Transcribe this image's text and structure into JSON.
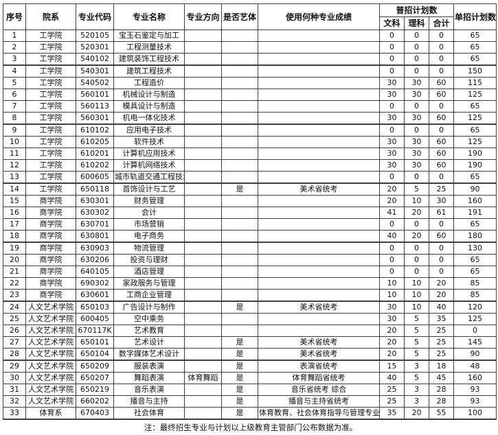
{
  "table": {
    "headers": {
      "no": "序号",
      "dept": "院系",
      "code": "专业代码",
      "name": "专业名称",
      "direction": "专业方向",
      "art": "是否艺体",
      "score": "使用何种专业成绩",
      "regular_group": "普招计划数",
      "wen": "文科",
      "li": "理科",
      "total": "合计",
      "single": "单招计划数"
    },
    "row_keys": [
      "no",
      "dept",
      "code",
      "name",
      "direction",
      "art",
      "score",
      "wen",
      "li",
      "total",
      "single"
    ],
    "rows": [
      {
        "no": 1,
        "dept": "工学院",
        "code": "520105",
        "name": "宝玉石鉴定与加工",
        "direction": "",
        "art": "",
        "score": "",
        "wen": 0,
        "li": 0,
        "total": 0,
        "single": 65
      },
      {
        "no": 2,
        "dept": "工学院",
        "code": "520301",
        "name": "工程测量技术",
        "direction": "",
        "art": "",
        "score": "",
        "wen": 0,
        "li": 0,
        "total": 0,
        "single": 65
      },
      {
        "no": 3,
        "dept": "工学院",
        "code": "540102",
        "name": "建筑装饰工程技术",
        "direction": "",
        "art": "",
        "score": "",
        "wen": 0,
        "li": 0,
        "total": 0,
        "single": 65
      },
      {
        "no": 4,
        "dept": "工学院",
        "code": "540301",
        "name": "建筑工程技术",
        "direction": "",
        "art": "",
        "score": "",
        "wen": 0,
        "li": 0,
        "total": 0,
        "single": 150
      },
      {
        "no": 5,
        "dept": "工学院",
        "code": "540502",
        "name": "工程造价",
        "direction": "",
        "art": "",
        "score": "",
        "wen": 30,
        "li": 30,
        "total": 60,
        "single": 115
      },
      {
        "no": 6,
        "dept": "工学院",
        "code": "560101",
        "name": "机械设计与制造",
        "direction": "",
        "art": "",
        "score": "",
        "wen": 30,
        "li": 30,
        "total": 60,
        "single": 125
      },
      {
        "no": 7,
        "dept": "工学院",
        "code": "560113",
        "name": "模具设计与制造",
        "direction": "",
        "art": "",
        "score": "",
        "wen": 0,
        "li": 0,
        "total": 0,
        "single": 65
      },
      {
        "no": 8,
        "dept": "工学院",
        "code": "560301",
        "name": "机电一体化技术",
        "direction": "",
        "art": "",
        "score": "",
        "wen": 30,
        "li": 30,
        "total": 60,
        "single": 125
      },
      {
        "no": 9,
        "dept": "工学院",
        "code": "610102",
        "name": "应用电子技术",
        "direction": "",
        "art": "",
        "score": "",
        "wen": 0,
        "li": 0,
        "total": 0,
        "single": 65
      },
      {
        "no": 10,
        "dept": "工学院",
        "code": "610205",
        "name": "软件技术",
        "direction": "",
        "art": "",
        "score": "",
        "wen": 30,
        "li": 30,
        "total": 60,
        "single": 125
      },
      {
        "no": 11,
        "dept": "工学院",
        "code": "610201",
        "name": "计算机应用技术",
        "direction": "",
        "art": "",
        "score": "",
        "wen": 30,
        "li": 30,
        "total": 60,
        "single": 190
      },
      {
        "no": 12,
        "dept": "工学院",
        "code": "610202",
        "name": "计算机网络技术",
        "direction": "",
        "art": "",
        "score": "",
        "wen": 30,
        "li": 30,
        "total": 60,
        "single": 190
      },
      {
        "no": 13,
        "dept": "工学院",
        "code": "600605",
        "name": "城市轨道交通工程技术",
        "direction": "",
        "art": "",
        "score": "",
        "wen": 0,
        "li": 0,
        "total": 0,
        "single": 65
      },
      {
        "no": 14,
        "dept": "工学院",
        "code": "650118",
        "name": "首饰设计与工艺",
        "direction": "",
        "art": "是",
        "score": "美术省统考",
        "wen": 20,
        "li": 5,
        "total": 25,
        "single": 90
      },
      {
        "no": 15,
        "dept": "商学院",
        "code": "630301",
        "name": "财务管理",
        "direction": "",
        "art": "",
        "score": "",
        "wen": 20,
        "li": 10,
        "total": 30,
        "single": 160
      },
      {
        "no": 16,
        "dept": "商学院",
        "code": "630302",
        "name": "会计",
        "direction": "",
        "art": "",
        "score": "",
        "wen": 41,
        "li": 20,
        "total": 61,
        "single": 191
      },
      {
        "no": 17,
        "dept": "商学院",
        "code": "630701",
        "name": "市场营销",
        "direction": "",
        "art": "",
        "score": "",
        "wen": 0,
        "li": 0,
        "total": 0,
        "single": 65
      },
      {
        "no": 18,
        "dept": "商学院",
        "code": "630801",
        "name": "电子商务",
        "direction": "",
        "art": "",
        "score": "",
        "wen": 40,
        "li": 20,
        "total": 60,
        "single": 180
      },
      {
        "no": 19,
        "dept": "商学院",
        "code": "630903",
        "name": "物流管理",
        "direction": "",
        "art": "",
        "score": "",
        "wen": 0,
        "li": 0,
        "total": 0,
        "single": 130
      },
      {
        "no": 20,
        "dept": "商学院",
        "code": "630206",
        "name": "投资与理财",
        "direction": "",
        "art": "",
        "score": "",
        "wen": 0,
        "li": 0,
        "total": 0,
        "single": 65
      },
      {
        "no": 21,
        "dept": "商学院",
        "code": "640105",
        "name": "酒店管理",
        "direction": "",
        "art": "",
        "score": "",
        "wen": 0,
        "li": 0,
        "total": 0,
        "single": 65
      },
      {
        "no": 22,
        "dept": "商学院",
        "code": "690302",
        "name": "家政服务与管理",
        "direction": "",
        "art": "",
        "score": "",
        "wen": 10,
        "li": 10,
        "total": 20,
        "single": 85
      },
      {
        "no": 23,
        "dept": "商学院",
        "code": "630601",
        "name": "工商企业管理",
        "direction": "",
        "art": "",
        "score": "",
        "wen": 10,
        "li": 10,
        "total": 20,
        "single": 85
      },
      {
        "no": 24,
        "dept": "人文艺术学院",
        "code": "650103",
        "name": "广告设计与制作",
        "direction": "",
        "art": "是",
        "score": "美术省统考",
        "wen": 30,
        "li": 10,
        "total": 40,
        "single": 120
      },
      {
        "no": 25,
        "dept": "人文艺术学院",
        "code": "600405",
        "name": "空中乘务",
        "direction": "",
        "art": "",
        "score": "",
        "wen": 30,
        "li": 5,
        "total": 35,
        "single": 125
      },
      {
        "no": 26,
        "dept": "人文艺术学院",
        "code": "670117K",
        "name": "艺术教育",
        "direction": "",
        "art": "",
        "score": "",
        "wen": 20,
        "li": 5,
        "total": 25,
        "single": 0
      },
      {
        "no": 27,
        "dept": "人文艺术学院",
        "code": "650101",
        "name": "艺术设计",
        "direction": "",
        "art": "是",
        "score": "美术省统考",
        "wen": 20,
        "li": 5,
        "total": 25,
        "single": 145
      },
      {
        "no": 28,
        "dept": "人文艺术学院",
        "code": "650104",
        "name": "数字媒体艺术设计",
        "direction": "",
        "art": "是",
        "score": "美术省统考",
        "wen": 20,
        "li": 5,
        "total": 25,
        "single": 90
      },
      {
        "no": 29,
        "dept": "人文艺术学院",
        "code": "650209",
        "name": "服装表演",
        "direction": "",
        "art": "是",
        "score": "表演省统考",
        "wen": 15,
        "li": 3,
        "total": 18,
        "single": 48
      },
      {
        "no": 30,
        "dept": "人文艺术学院",
        "code": "650207",
        "name": "舞蹈表演",
        "direction": "体育舞蹈",
        "art": "是",
        "score": "体育舞蹈省统考",
        "wen": 40,
        "li": 5,
        "total": 45,
        "single": 160
      },
      {
        "no": 31,
        "dept": "人文艺术学院",
        "code": "650219",
        "name": "音乐表演",
        "direction": "",
        "art": "是",
        "score": "音乐省统考 综合",
        "wen": 25,
        "li": 3,
        "total": 28,
        "single": 93
      },
      {
        "no": 32,
        "dept": "人文艺术学院",
        "code": "660202",
        "name": "播音与主持",
        "direction": "",
        "art": "是",
        "score": "播音与主持省统考",
        "wen": 25,
        "li": 3,
        "total": 28,
        "single": 93
      },
      {
        "no": 33,
        "dept": "体育系",
        "code": "670403",
        "name": "社会体育",
        "direction": "",
        "art": "是",
        "score": "体育教育、社会体育指导与管理专业",
        "wen": 35,
        "li": 20,
        "total": 55,
        "single": 100
      }
    ]
  },
  "note": "注：最终招生专业与计划以上级教育主管部门公布数据为准。",
  "colors": {
    "border": "#3f3f3f",
    "text": "#111111",
    "background": "#ffffff"
  }
}
